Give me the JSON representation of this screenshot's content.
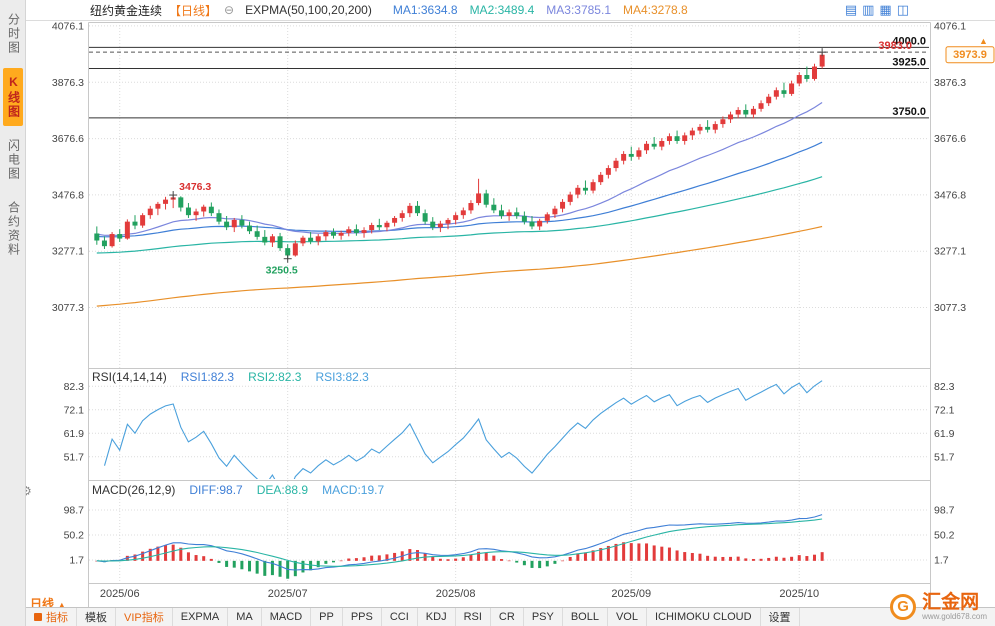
{
  "sidebar": {
    "tabs": [
      {
        "key": "time-chart",
        "label": "分时图",
        "active": false
      },
      {
        "key": "kline-chart",
        "label": "K线图",
        "active": true
      },
      {
        "key": "lightning-chart",
        "label": "闪电图",
        "active": false
      },
      {
        "key": "contract-info",
        "label": "合约资料",
        "active": false
      }
    ]
  },
  "topbar": {
    "title": "纽约黄金连续",
    "period": "【日线】",
    "collapse_icon": "⊖",
    "indicator_label": "EXPMA(50,100,20,200)",
    "ma_values": [
      {
        "text": "MA1:3634.8",
        "color": "#3f7fd6"
      },
      {
        "text": "MA2:3489.4",
        "color": "#2ab5a5"
      },
      {
        "text": "MA3:3785.1",
        "color": "#7b86dd"
      },
      {
        "text": "MA4:3278.8",
        "color": "#e8902a"
      }
    ],
    "window_icons": [
      "▤",
      "▥",
      "▦",
      "◫"
    ]
  },
  "panels": {
    "rsi_header": [
      {
        "text": "RSI(14,14,14)",
        "color": "#333333"
      },
      {
        "text": "RSI1:82.3",
        "color": "#3f7fd6"
      },
      {
        "text": "RSI2:82.3",
        "color": "#2ab5a5"
      },
      {
        "text": "RSI3:82.3",
        "color": "#4aa0dc"
      }
    ],
    "macd_header": [
      {
        "text": "MACD(26,12,9)",
        "color": "#333333"
      },
      {
        "text": "DIFF:98.7",
        "color": "#3f7fd6"
      },
      {
        "text": "DEA:88.9",
        "color": "#2ab5a5"
      },
      {
        "text": "MACD:19.7",
        "color": "#4aa0dc"
      }
    ]
  },
  "misc": {
    "gear_icon": "⚙",
    "up_arrow_icon": "▲"
  },
  "bottom": {
    "period_selector": "日线",
    "period_arrow": "▲",
    "toolbar": [
      {
        "key": "indicators",
        "label": "指标",
        "accent": true,
        "icon": true
      },
      {
        "key": "templates",
        "label": "模板"
      },
      {
        "key": "vip-indicators",
        "label": "VIP指标",
        "accent": true
      },
      {
        "key": "expma",
        "label": "EXPMA"
      },
      {
        "key": "ma",
        "label": "MA"
      },
      {
        "key": "macd",
        "label": "MACD"
      },
      {
        "key": "pp",
        "label": "PP"
      },
      {
        "key": "pps",
        "label": "PPS"
      },
      {
        "key": "cci",
        "label": "CCI"
      },
      {
        "key": "kdj",
        "label": "KDJ"
      },
      {
        "key": "rsi",
        "label": "RSI"
      },
      {
        "key": "cr",
        "label": "CR"
      },
      {
        "key": "psy",
        "label": "PSY"
      },
      {
        "key": "boll",
        "label": "BOLL"
      },
      {
        "key": "vol",
        "label": "VOL"
      },
      {
        "key": "ichimoku",
        "label": "ICHIMOKU CLOUD"
      },
      {
        "key": "settings",
        "label": "设置"
      }
    ],
    "logo": {
      "mark": "G",
      "text": "汇金网",
      "sub": "www.gold678.com"
    }
  },
  "chart_data": {
    "type": "candlestick",
    "title": "纽约黄金连续【日线】",
    "x_labels": [
      "2025/06",
      "2025/07",
      "2025/08",
      "2025/09",
      "2025/10"
    ],
    "x_label_indices": [
      3,
      25,
      47,
      70,
      92
    ],
    "colors": {
      "up": "#e23b3b",
      "down": "#22a15f",
      "grid": "#dcdcdc",
      "axis_text": "#444444",
      "rsi_line": "#4aa0dc",
      "diff_line": "#3f7fd6",
      "dea_line": "#2ab5a5",
      "accent_orange": "#f08c1e"
    },
    "main_panel": {
      "y_ticks": [
        4076.1,
        3876.3,
        3676.6,
        3476.8,
        3277.1,
        3077.3
      ],
      "y_range": [
        2870,
        4090
      ],
      "hlines": [
        {
          "value": 4000.0,
          "label": "4000.0",
          "dash": false,
          "color": "#333333",
          "label_color": "#111111"
        },
        {
          "value": 3983.0,
          "label": "3983.0",
          "dash": true,
          "color": "#555555",
          "label_color": "#d93030"
        },
        {
          "value": 3925.0,
          "label": "3925.0",
          "dash": false,
          "color": "#333333",
          "label_color": "#111111"
        },
        {
          "value": 3750.0,
          "label": "3750.0",
          "dash": false,
          "color": "#333333",
          "label_color": "#111111"
        }
      ],
      "annotations": [
        {
          "index": 10,
          "price": 3476.3,
          "text": "3476.3",
          "color": "#d93030",
          "place": "right-above"
        },
        {
          "index": 25,
          "price": 3250.5,
          "text": "3250.5",
          "color": "#22a15f",
          "place": "below"
        }
      ],
      "markers": [
        [
          10,
          3476.3
        ],
        [
          25,
          3250.5
        ],
        [
          95,
          3983.0
        ]
      ],
      "last_price": 3973.9,
      "expma": {
        "periods": [
          50,
          100,
          20,
          200
        ],
        "seeds": [
          3330,
          3270,
          3340,
          3080
        ],
        "colors": [
          "#3f7fd6",
          "#2ab5a5",
          "#7b86dd",
          "#e8902a"
        ]
      }
    },
    "rsi_panel": {
      "period": 14,
      "y_ticks": [
        82.3,
        72.1,
        61.9,
        51.7
      ],
      "y_range": [
        42.5,
        88.5
      ]
    },
    "macd_panel": {
      "params": [
        26,
        12,
        9
      ],
      "y_ticks": [
        98.7,
        50.2,
        1.7
      ],
      "y_range": [
        -25.5,
        149
      ]
    },
    "candles": [
      [
        3340,
        3365,
        3300,
        3315
      ],
      [
        3315,
        3330,
        3285,
        3295
      ],
      [
        3295,
        3345,
        3290,
        3338
      ],
      [
        3338,
        3355,
        3310,
        3322
      ],
      [
        3322,
        3390,
        3318,
        3382
      ],
      [
        3382,
        3405,
        3355,
        3368
      ],
      [
        3368,
        3412,
        3360,
        3405
      ],
      [
        3405,
        3438,
        3392,
        3428
      ],
      [
        3428,
        3452,
        3405,
        3445
      ],
      [
        3445,
        3470,
        3425,
        3460
      ],
      [
        3460,
        3476.3,
        3430,
        3468
      ],
      [
        3468,
        3472,
        3418,
        3432
      ],
      [
        3432,
        3448,
        3395,
        3405
      ],
      [
        3405,
        3428,
        3385,
        3418
      ],
      [
        3418,
        3442,
        3400,
        3435
      ],
      [
        3435,
        3450,
        3402,
        3412
      ],
      [
        3412,
        3425,
        3372,
        3382
      ],
      [
        3382,
        3402,
        3352,
        3362
      ],
      [
        3362,
        3395,
        3345,
        3388
      ],
      [
        3388,
        3405,
        3358,
        3368
      ],
      [
        3368,
        3382,
        3338,
        3348
      ],
      [
        3348,
        3368,
        3318,
        3328
      ],
      [
        3328,
        3352,
        3298,
        3308
      ],
      [
        3308,
        3338,
        3292,
        3330
      ],
      [
        3330,
        3342,
        3278,
        3288
      ],
      [
        3288,
        3302,
        3250.5,
        3262
      ],
      [
        3262,
        3315,
        3258,
        3305
      ],
      [
        3305,
        3332,
        3295,
        3325
      ],
      [
        3325,
        3345,
        3302,
        3312
      ],
      [
        3312,
        3338,
        3298,
        3330
      ],
      [
        3330,
        3352,
        3315,
        3345
      ],
      [
        3345,
        3358,
        3322,
        3332
      ],
      [
        3332,
        3350,
        3318,
        3342
      ],
      [
        3342,
        3365,
        3330,
        3355
      ],
      [
        3355,
        3372,
        3332,
        3342
      ],
      [
        3342,
        3362,
        3325,
        3352
      ],
      [
        3352,
        3378,
        3340,
        3370
      ],
      [
        3370,
        3392,
        3352,
        3362
      ],
      [
        3362,
        3385,
        3348,
        3378
      ],
      [
        3378,
        3402,
        3365,
        3395
      ],
      [
        3395,
        3422,
        3382,
        3412
      ],
      [
        3412,
        3448,
        3398,
        3438
      ],
      [
        3438,
        3455,
        3402,
        3412
      ],
      [
        3412,
        3425,
        3372,
        3382
      ],
      [
        3382,
        3398,
        3352,
        3362
      ],
      [
        3362,
        3385,
        3345,
        3375
      ],
      [
        3375,
        3395,
        3355,
        3388
      ],
      [
        3388,
        3415,
        3372,
        3405
      ],
      [
        3405,
        3432,
        3392,
        3422
      ],
      [
        3422,
        3458,
        3410,
        3448
      ],
      [
        3448,
        3534,
        3440,
        3482
      ],
      [
        3482,
        3495,
        3432,
        3442
      ],
      [
        3442,
        3465,
        3412,
        3422
      ],
      [
        3422,
        3442,
        3392,
        3402
      ],
      [
        3402,
        3425,
        3385,
        3415
      ],
      [
        3415,
        3432,
        3392,
        3402
      ],
      [
        3402,
        3418,
        3372,
        3382
      ],
      [
        3382,
        3402,
        3355,
        3365
      ],
      [
        3365,
        3392,
        3352,
        3385
      ],
      [
        3385,
        3415,
        3375,
        3408
      ],
      [
        3408,
        3438,
        3395,
        3428
      ],
      [
        3428,
        3462,
        3415,
        3452
      ],
      [
        3452,
        3488,
        3440,
        3478
      ],
      [
        3478,
        3512,
        3465,
        3502
      ],
      [
        3502,
        3528,
        3478,
        3492
      ],
      [
        3492,
        3532,
        3482,
        3522
      ],
      [
        3522,
        3558,
        3512,
        3548
      ],
      [
        3548,
        3582,
        3535,
        3572
      ],
      [
        3572,
        3608,
        3560,
        3598
      ],
      [
        3598,
        3632,
        3585,
        3622
      ],
      [
        3622,
        3648,
        3598,
        3612
      ],
      [
        3612,
        3645,
        3602,
        3635
      ],
      [
        3635,
        3668,
        3622,
        3658
      ],
      [
        3658,
        3682,
        3638,
        3648
      ],
      [
        3648,
        3678,
        3635,
        3668
      ],
      [
        3668,
        3695,
        3655,
        3685
      ],
      [
        3685,
        3705,
        3658,
        3668
      ],
      [
        3668,
        3698,
        3655,
        3688
      ],
      [
        3688,
        3715,
        3672,
        3705
      ],
      [
        3705,
        3728,
        3692,
        3718
      ],
      [
        3718,
        3742,
        3698,
        3708
      ],
      [
        3708,
        3738,
        3695,
        3728
      ],
      [
        3728,
        3755,
        3715,
        3745
      ],
      [
        3745,
        3772,
        3732,
        3762
      ],
      [
        3762,
        3788,
        3748,
        3778
      ],
      [
        3778,
        3798,
        3752,
        3762
      ],
      [
        3762,
        3792,
        3748,
        3782
      ],
      [
        3782,
        3812,
        3772,
        3802
      ],
      [
        3802,
        3835,
        3792,
        3825
      ],
      [
        3825,
        3858,
        3815,
        3848
      ],
      [
        3848,
        3875,
        3822,
        3835
      ],
      [
        3835,
        3882,
        3828,
        3872
      ],
      [
        3872,
        3912,
        3862,
        3902
      ],
      [
        3902,
        3932,
        3878,
        3888
      ],
      [
        3888,
        3942,
        3882,
        3932
      ],
      [
        3932,
        3983,
        3925,
        3973.9
      ]
    ]
  }
}
